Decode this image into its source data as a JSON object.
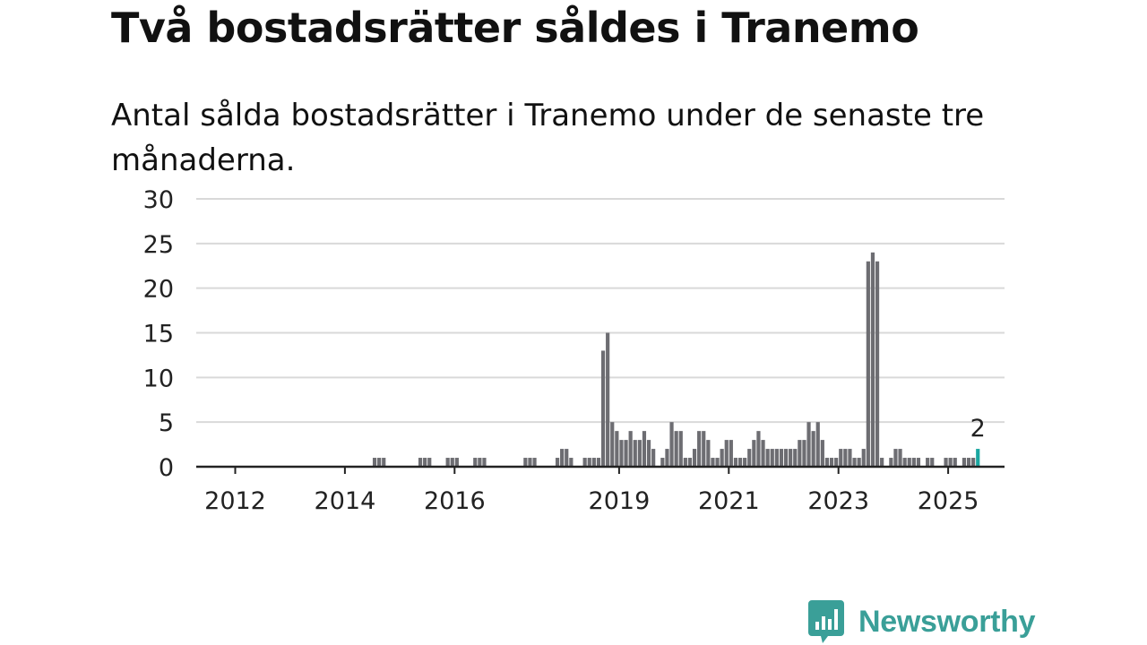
{
  "header": {
    "title": "Två bostadsrätter såldes i Tranemo",
    "subtitle": "Antal sålda bostadsrätter i Tranemo under de senaste tre månaderna."
  },
  "brand": {
    "name": "Newsworthy",
    "color": "#3a9f98"
  },
  "colors": {
    "bar": "#6d6d72",
    "highlight": "#1aa7a1",
    "grid": "#d9d9d9",
    "axis": "#222222"
  },
  "chart_data": {
    "type": "bar",
    "title": "",
    "xlabel": "",
    "ylabel": "",
    "ylim": [
      0,
      30
    ],
    "yticks": [
      "0",
      "5",
      "10",
      "15",
      "20",
      "25",
      "30"
    ],
    "xticks": [
      "2012",
      "2014",
      "2016",
      "2019",
      "2021",
      "2023",
      "2025"
    ],
    "grid": true,
    "annotation": "2",
    "series": [
      {
        "values": [
          {
            "x": "2014-07",
            "y": 1
          },
          {
            "x": "2014-08",
            "y": 1
          },
          {
            "x": "2014-09",
            "y": 1
          },
          {
            "x": "2015-05",
            "y": 1
          },
          {
            "x": "2015-06",
            "y": 1
          },
          {
            "x": "2015-07",
            "y": 1
          },
          {
            "x": "2015-11",
            "y": 1
          },
          {
            "x": "2015-12",
            "y": 1
          },
          {
            "x": "2016-01",
            "y": 1
          },
          {
            "x": "2016-05",
            "y": 1
          },
          {
            "x": "2016-06",
            "y": 1
          },
          {
            "x": "2016-07",
            "y": 1
          },
          {
            "x": "2017-04",
            "y": 1
          },
          {
            "x": "2017-05",
            "y": 1
          },
          {
            "x": "2017-06",
            "y": 1
          },
          {
            "x": "2017-11",
            "y": 1
          },
          {
            "x": "2017-12",
            "y": 2
          },
          {
            "x": "2018-01",
            "y": 2
          },
          {
            "x": "2018-02",
            "y": 1
          },
          {
            "x": "2018-05",
            "y": 1
          },
          {
            "x": "2018-06",
            "y": 1
          },
          {
            "x": "2018-07",
            "y": 1
          },
          {
            "x": "2018-08",
            "y": 1
          },
          {
            "x": "2018-09",
            "y": 13
          },
          {
            "x": "2018-10",
            "y": 15
          },
          {
            "x": "2018-11",
            "y": 5
          },
          {
            "x": "2018-12",
            "y": 4
          },
          {
            "x": "2019-01",
            "y": 3
          },
          {
            "x": "2019-02",
            "y": 3
          },
          {
            "x": "2019-03",
            "y": 4
          },
          {
            "x": "2019-04",
            "y": 3
          },
          {
            "x": "2019-05",
            "y": 3
          },
          {
            "x": "2019-06",
            "y": 4
          },
          {
            "x": "2019-07",
            "y": 3
          },
          {
            "x": "2019-08",
            "y": 2
          },
          {
            "x": "2019-10",
            "y": 1
          },
          {
            "x": "2019-11",
            "y": 2
          },
          {
            "x": "2019-12",
            "y": 5
          },
          {
            "x": "2020-01",
            "y": 4
          },
          {
            "x": "2020-02",
            "y": 4
          },
          {
            "x": "2020-03",
            "y": 1
          },
          {
            "x": "2020-04",
            "y": 1
          },
          {
            "x": "2020-05",
            "y": 2
          },
          {
            "x": "2020-06",
            "y": 4
          },
          {
            "x": "2020-07",
            "y": 4
          },
          {
            "x": "2020-08",
            "y": 3
          },
          {
            "x": "2020-09",
            "y": 1
          },
          {
            "x": "2020-10",
            "y": 1
          },
          {
            "x": "2020-11",
            "y": 2
          },
          {
            "x": "2020-12",
            "y": 3
          },
          {
            "x": "2021-01",
            "y": 3
          },
          {
            "x": "2021-02",
            "y": 1
          },
          {
            "x": "2021-03",
            "y": 1
          },
          {
            "x": "2021-04",
            "y": 1
          },
          {
            "x": "2021-05",
            "y": 2
          },
          {
            "x": "2021-06",
            "y": 3
          },
          {
            "x": "2021-07",
            "y": 4
          },
          {
            "x": "2021-08",
            "y": 3
          },
          {
            "x": "2021-09",
            "y": 2
          },
          {
            "x": "2021-10",
            "y": 2
          },
          {
            "x": "2021-11",
            "y": 2
          },
          {
            "x": "2021-12",
            "y": 2
          },
          {
            "x": "2022-01",
            "y": 2
          },
          {
            "x": "2022-02",
            "y": 2
          },
          {
            "x": "2022-03",
            "y": 2
          },
          {
            "x": "2022-04",
            "y": 3
          },
          {
            "x": "2022-05",
            "y": 3
          },
          {
            "x": "2022-06",
            "y": 5
          },
          {
            "x": "2022-07",
            "y": 4
          },
          {
            "x": "2022-08",
            "y": 5
          },
          {
            "x": "2022-09",
            "y": 3
          },
          {
            "x": "2022-10",
            "y": 1
          },
          {
            "x": "2022-11",
            "y": 1
          },
          {
            "x": "2022-12",
            "y": 1
          },
          {
            "x": "2023-01",
            "y": 2
          },
          {
            "x": "2023-02",
            "y": 2
          },
          {
            "x": "2023-03",
            "y": 2
          },
          {
            "x": "2023-04",
            "y": 1
          },
          {
            "x": "2023-05",
            "y": 1
          },
          {
            "x": "2023-06",
            "y": 2
          },
          {
            "x": "2023-07",
            "y": 23
          },
          {
            "x": "2023-08",
            "y": 24
          },
          {
            "x": "2023-09",
            "y": 23
          },
          {
            "x": "2023-10",
            "y": 1
          },
          {
            "x": "2023-12",
            "y": 1
          },
          {
            "x": "2024-01",
            "y": 2
          },
          {
            "x": "2024-02",
            "y": 2
          },
          {
            "x": "2024-03",
            "y": 1
          },
          {
            "x": "2024-04",
            "y": 1
          },
          {
            "x": "2024-05",
            "y": 1
          },
          {
            "x": "2024-06",
            "y": 1
          },
          {
            "x": "2024-08",
            "y": 1
          },
          {
            "x": "2024-09",
            "y": 1
          },
          {
            "x": "2024-12",
            "y": 1
          },
          {
            "x": "2025-01",
            "y": 1
          },
          {
            "x": "2025-02",
            "y": 1
          },
          {
            "x": "2025-04",
            "y": 1
          },
          {
            "x": "2025-05",
            "y": 1
          },
          {
            "x": "2025-06",
            "y": 1
          },
          {
            "x": "2025-07",
            "y": 2,
            "highlight": true
          }
        ]
      }
    ]
  }
}
